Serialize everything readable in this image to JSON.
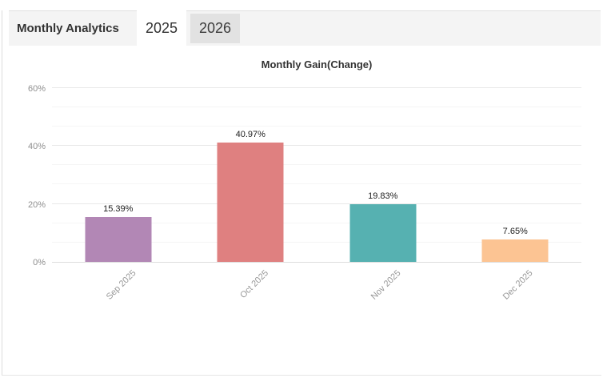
{
  "header": {
    "title": "Monthly Analytics",
    "tabs": [
      {
        "label": "2025",
        "active": true
      },
      {
        "label": "2026",
        "active": false
      }
    ]
  },
  "chart_data": {
    "type": "bar",
    "title": "Monthly Gain(Change)",
    "categories": [
      "Sep 2025",
      "Oct 2025",
      "Nov 2025",
      "Dec 2025"
    ],
    "values": [
      15.39,
      40.97,
      19.83,
      7.65
    ],
    "value_labels": [
      "15.39%",
      "40.97%",
      "19.83%",
      "7.65%"
    ],
    "bar_colors": [
      "#b287b5",
      "#df8080",
      "#56b1b1",
      "#fcc493"
    ],
    "y_tick_labels": [
      "0%",
      "20%",
      "40%",
      "60%"
    ],
    "ylim": [
      0,
      64
    ],
    "grid": {
      "major_step": 20,
      "minor_per_major": 3,
      "on": true
    },
    "xlabel": "",
    "ylabel": "",
    "legend": "none",
    "x_labels_rotation_deg": -45
  }
}
